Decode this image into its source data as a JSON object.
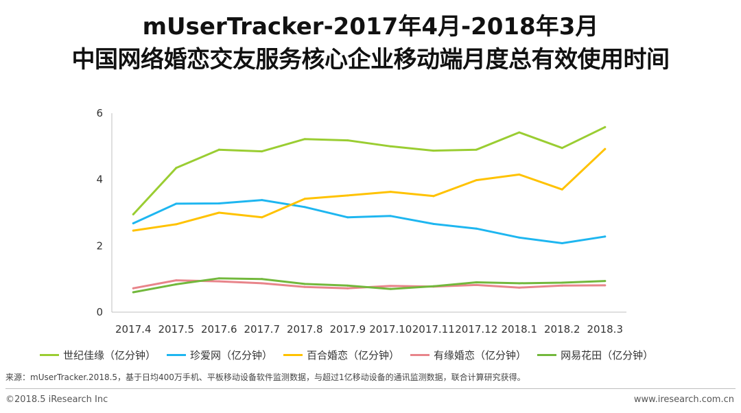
{
  "header": {
    "title_line1": "mUserTracker-2017年4月-2018年3月",
    "title_line2": "中国网络婚恋交友服务核心企业移动端月度总有效使用时间"
  },
  "colors": {
    "shijijiayuan": "#9ACD32",
    "zhenaiwang": "#1EB6F0",
    "baihehunlian": "#FFC200",
    "youyuanhunlian": "#E8848A",
    "wangyihuatian": "#72B83C",
    "axis": "#BFBFBF",
    "text": "#333333"
  },
  "chart_data": {
    "type": "line",
    "title": "mUserTracker-2017年4月-2018年3月 中国网络婚恋交友服务核心企业移动端月度总有效使用时间",
    "xlabel": "",
    "ylabel": "",
    "ylim": [
      0,
      6
    ],
    "yticks": [
      "0",
      "2",
      "4",
      "6"
    ],
    "grid": false,
    "legend_position": "bottom",
    "categories": [
      "2017.4",
      "2017.5",
      "2017.6",
      "2017.7",
      "2017.8",
      "2017.9",
      "2017.10",
      "2017.11",
      "2017.12",
      "2018.1",
      "2018.2",
      "2018.3"
    ],
    "series": [
      {
        "name": "世纪佳缘（亿分钟）",
        "color_key": "shijijiayuan",
        "values": [
          2.95,
          4.35,
          4.9,
          4.85,
          5.22,
          5.18,
          5.0,
          4.87,
          4.9,
          5.42,
          4.95,
          5.58
        ]
      },
      {
        "name": "珍爱网（亿分钟）",
        "color_key": "zhenaiwang",
        "values": [
          2.68,
          3.27,
          3.28,
          3.38,
          3.17,
          2.86,
          2.9,
          2.66,
          2.52,
          2.25,
          2.08,
          2.28
        ]
      },
      {
        "name": "百合婚恋（亿分钟）",
        "color_key": "baihehunlian",
        "values": [
          2.46,
          2.65,
          3.0,
          2.86,
          3.42,
          3.52,
          3.63,
          3.5,
          3.98,
          4.15,
          3.7,
          4.92
        ]
      },
      {
        "name": "有缘婚恋（亿分钟）",
        "color_key": "youyuanhunlian",
        "values": [
          0.72,
          0.96,
          0.93,
          0.87,
          0.76,
          0.72,
          0.79,
          0.77,
          0.82,
          0.74,
          0.8,
          0.81
        ]
      },
      {
        "name": "网易花田（亿分钟）",
        "color_key": "wangyihuatian",
        "values": [
          0.6,
          0.84,
          1.02,
          1.0,
          0.85,
          0.8,
          0.7,
          0.78,
          0.9,
          0.87,
          0.89,
          0.94
        ]
      }
    ]
  },
  "footer": {
    "source": "来源：mUserTracker.2018.5，基于日均400万手机、平板移动设备软件监测数据，与超过1亿移动设备的通讯监测数据，联合计算研究获得。",
    "copyright": "©2018.5 iResearch Inc",
    "website": "www.iresearch.com.cn"
  }
}
